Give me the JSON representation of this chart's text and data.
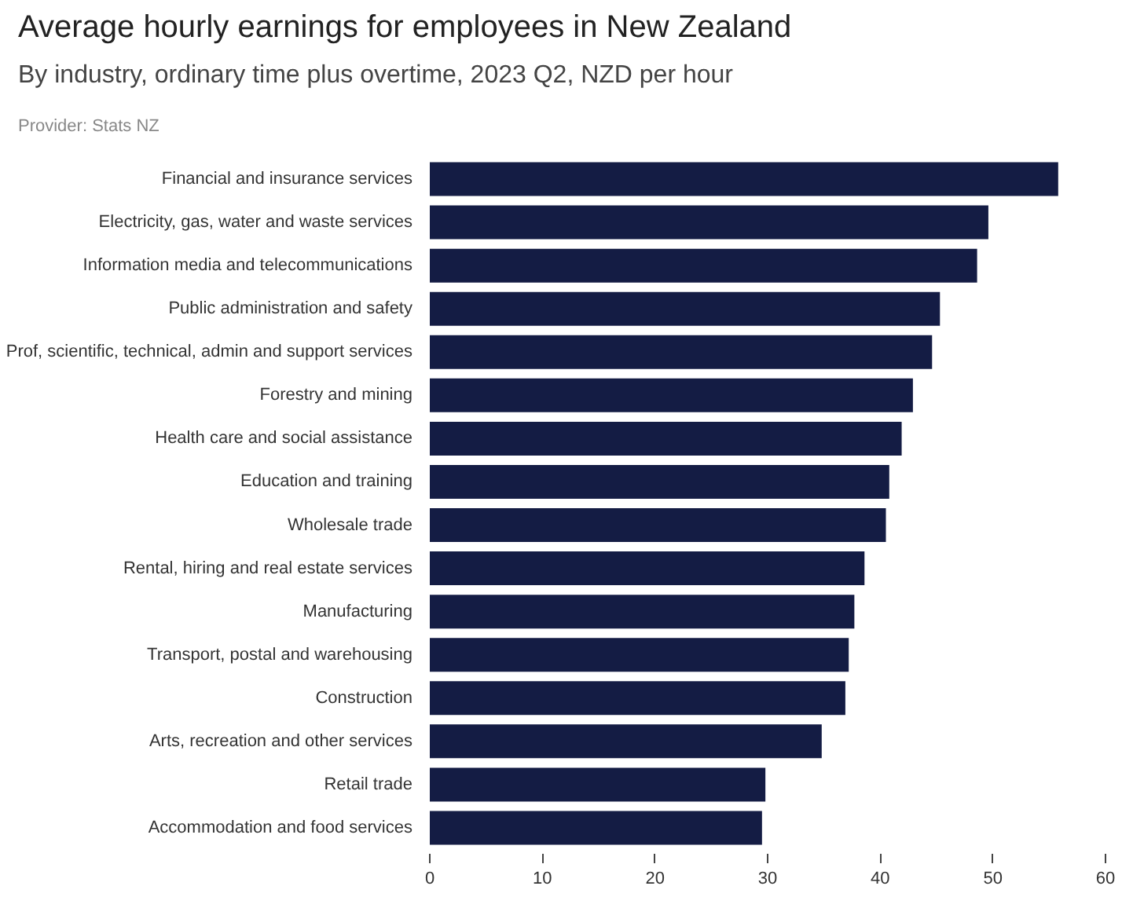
{
  "chart_data": {
    "type": "bar",
    "orientation": "horizontal",
    "title": "Average hourly earnings for employees in New Zealand",
    "subtitle": "By industry, ordinary time plus overtime, 2023 Q2, NZD per hour",
    "annotations": [
      "Provider: Stats NZ"
    ],
    "categories": [
      "Financial and insurance services",
      "Electricity, gas, water and waste services",
      "Information media and telecommunications",
      "Public administration and safety",
      "Prof, scientific, technical, admin and support services",
      "Forestry and mining",
      "Health care and social assistance",
      "Education and training",
      "Wholesale trade",
      "Rental, hiring and real estate services",
      "Manufacturing",
      "Transport, postal and warehousing",
      "Construction",
      "Arts, recreation and other services",
      "Retail trade",
      "Accommodation and food services"
    ],
    "values": [
      55.8,
      49.6,
      48.6,
      45.3,
      44.6,
      42.9,
      41.9,
      40.8,
      40.5,
      38.6,
      37.7,
      37.2,
      36.9,
      34.8,
      29.8,
      29.5
    ],
    "color": "#141c44",
    "xlim": [
      0,
      60
    ],
    "xticks": [
      0,
      10,
      20,
      30,
      40,
      50,
      60
    ],
    "grid": false
  }
}
